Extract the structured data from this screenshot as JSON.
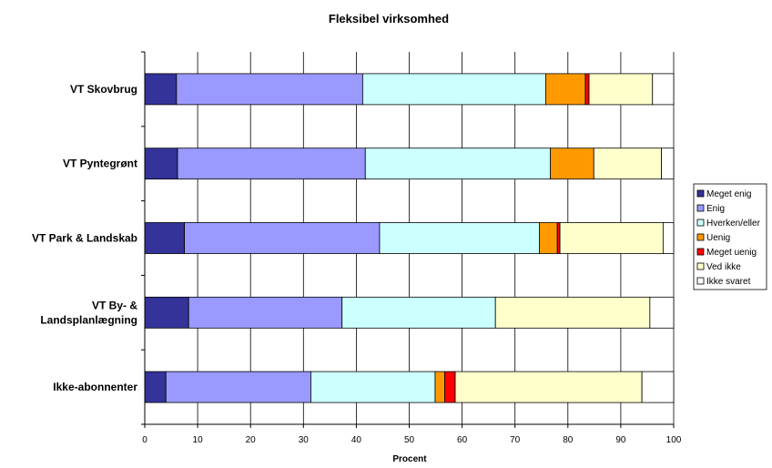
{
  "chart_data": {
    "type": "bar",
    "orientation": "horizontal",
    "stacked": true,
    "title": "Fleksibel virksomhed",
    "xlabel": "Procent",
    "ylabel": "",
    "xlim": [
      0,
      100
    ],
    "xticks": [
      0,
      10,
      20,
      30,
      40,
      50,
      60,
      70,
      80,
      90,
      100
    ],
    "grid": "vertical",
    "legend_position": "right",
    "categories": [
      [
        "VT Skovbrug"
      ],
      [
        "VT Pyntegrønt"
      ],
      [
        "VT Park & Landskab"
      ],
      [
        "VT By- &",
        "Landsplanlægning"
      ],
      [
        "Ikke-abonnenter"
      ]
    ],
    "series": [
      {
        "name": "Meget enig",
        "color": "#333399",
        "values": [
          6.0,
          6.2,
          7.5,
          8.3,
          4.0
        ]
      },
      {
        "name": "Enig",
        "color": "#9999ff",
        "values": [
          35.2,
          35.5,
          36.9,
          29.0,
          27.4
        ]
      },
      {
        "name": "Hverken/eller",
        "color": "#ccffff",
        "values": [
          34.6,
          35.0,
          30.2,
          29.0,
          23.5
        ]
      },
      {
        "name": "Uenig",
        "color": "#ff9900",
        "values": [
          7.5,
          8.2,
          3.4,
          0,
          1.8
        ]
      },
      {
        "name": "Meget uenig",
        "color": "#ff0000",
        "values": [
          0.7,
          0,
          0.5,
          0,
          2.0
        ]
      },
      {
        "name": "Ved ikke",
        "color": "#ffffcc",
        "values": [
          12.0,
          12.8,
          19.5,
          29.2,
          35.3
        ]
      },
      {
        "name": "Ikke svaret",
        "color": "#ffffff",
        "values": [
          4.0,
          2.3,
          2.0,
          4.5,
          6.0
        ]
      }
    ]
  }
}
